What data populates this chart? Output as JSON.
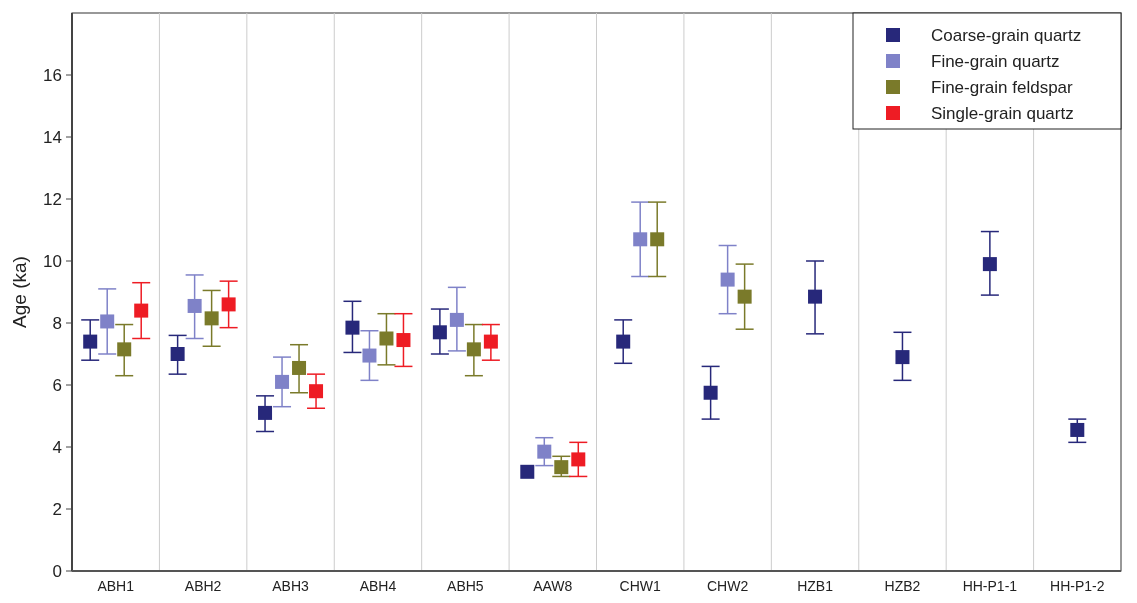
{
  "chart_data": {
    "type": "scatter",
    "ylabel": "Age (ka)",
    "categories": [
      "ABH1",
      "ABH2",
      "ABH3",
      "ABH4",
      "ABH5",
      "AAW8",
      "CHW1",
      "CHW2",
      "HZB1",
      "HZB2",
      "HH-P1-1",
      "HH-P1-2"
    ],
    "ylim": [
      0,
      18
    ],
    "yticks": [
      0,
      2,
      4,
      6,
      8,
      10,
      12,
      14,
      16
    ],
    "grid": "x",
    "legend": "top right",
    "marker": "square",
    "series": [
      {
        "name": "Coarse-grain quartz",
        "color": "#27287a",
        "values": [
          7.4,
          7.0,
          5.1,
          7.85,
          7.7,
          3.2,
          7.4,
          5.75,
          8.85,
          6.9,
          9.9,
          4.55
        ],
        "errors": [
          [
            6.8,
            8.1
          ],
          [
            6.35,
            7.6
          ],
          [
            4.5,
            5.65
          ],
          [
            7.05,
            8.7
          ],
          [
            7.0,
            8.45
          ],
          null,
          [
            6.7,
            8.1
          ],
          [
            4.9,
            6.6
          ],
          [
            7.65,
            10.0
          ],
          [
            6.15,
            7.7
          ],
          [
            8.9,
            10.95
          ],
          [
            4.15,
            4.9
          ]
        ]
      },
      {
        "name": "Fine-grain quartz",
        "color": "#7f82c8",
        "values": [
          8.05,
          8.55,
          6.1,
          6.95,
          8.1,
          3.85,
          10.7,
          9.4,
          null,
          null,
          null,
          null
        ],
        "errors": [
          [
            7.0,
            9.1
          ],
          [
            7.5,
            9.55
          ],
          [
            5.3,
            6.9
          ],
          [
            6.15,
            7.75
          ],
          [
            7.1,
            9.15
          ],
          [
            3.4,
            4.3
          ],
          [
            9.5,
            11.9
          ],
          [
            8.3,
            10.5
          ],
          null,
          null,
          null,
          null
        ]
      },
      {
        "name": "Fine-grain feldspar",
        "color": "#7a7a2a",
        "values": [
          7.15,
          8.15,
          6.55,
          7.5,
          7.15,
          3.35,
          10.7,
          8.85,
          null,
          null,
          null,
          null
        ],
        "errors": [
          [
            6.3,
            7.95
          ],
          [
            7.25,
            9.05
          ],
          [
            5.75,
            7.3
          ],
          [
            6.65,
            8.3
          ],
          [
            6.3,
            7.95
          ],
          [
            3.05,
            3.7
          ],
          [
            9.5,
            11.9
          ],
          [
            7.8,
            9.9
          ],
          null,
          null,
          null,
          null
        ]
      },
      {
        "name": "Single-grain quartz",
        "color": "#ee1c24",
        "values": [
          8.4,
          8.6,
          5.8,
          7.45,
          7.4,
          3.6,
          null,
          null,
          null,
          null,
          null,
          null
        ],
        "errors": [
          [
            7.5,
            9.3
          ],
          [
            7.85,
            9.35
          ],
          [
            5.25,
            6.35
          ],
          [
            6.6,
            8.3
          ],
          [
            6.8,
            7.95
          ],
          [
            3.05,
            4.15
          ],
          null,
          null,
          null,
          null,
          null,
          null
        ]
      }
    ]
  }
}
